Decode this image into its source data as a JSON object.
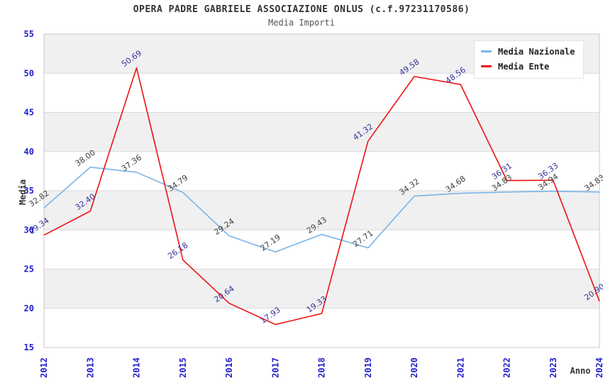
{
  "header": {
    "title": "OPERA PADRE GABRIELE ASSOCIAZIONE ONLUS (c.f.97231170586)",
    "subtitle": "Media Importi"
  },
  "chart_data": {
    "type": "line",
    "title": "OPERA PADRE GABRIELE ASSOCIAZIONE ONLUS (c.f.97231170586)",
    "subtitle": "Media Importi",
    "xlabel": "Anno",
    "ylabel": "Media",
    "categories": [
      "2012",
      "2013",
      "2014",
      "2015",
      "2016",
      "2017",
      "2018",
      "2019",
      "2020",
      "2021",
      "2022",
      "2023",
      "2024"
    ],
    "series": [
      {
        "name": "Media Nazionale",
        "color": "#7ab4e8",
        "label_color": "#404040",
        "values": [
          32.82,
          38.0,
          37.36,
          34.79,
          29.24,
          27.19,
          29.43,
          27.71,
          34.32,
          34.68,
          34.83,
          34.94,
          34.83
        ]
      },
      {
        "name": "Media Ente",
        "color": "#ec1212",
        "label_color": "#333399",
        "values": [
          29.34,
          32.4,
          50.69,
          26.18,
          20.64,
          17.93,
          19.33,
          41.32,
          49.58,
          48.56,
          36.31,
          36.33,
          20.9
        ]
      }
    ],
    "ylim": [
      15,
      55
    ],
    "y_ticks": [
      15,
      20,
      25,
      30,
      35,
      40,
      45,
      50,
      55
    ],
    "tick_color": "#2020cc",
    "band_colors": [
      "#f0f0f0",
      "#ffffff"
    ],
    "grid": "horizontal",
    "legend_position": "top-right"
  }
}
